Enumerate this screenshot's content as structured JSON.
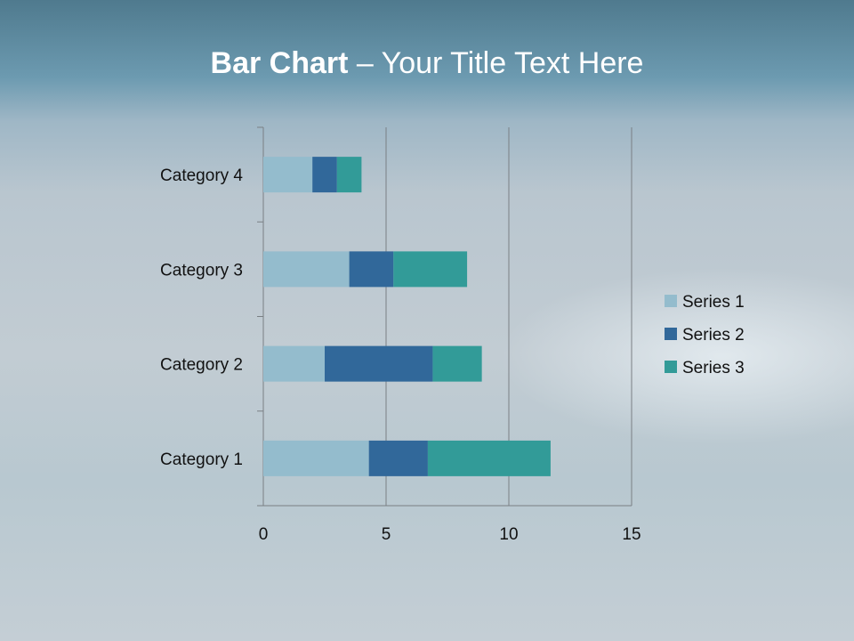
{
  "title": {
    "bold": "Bar Chart",
    "rest": " – Your Title Text Here"
  },
  "chart_data": {
    "type": "bar",
    "orientation": "horizontal",
    "stacked": true,
    "categories": [
      "Category 1",
      "Category 2",
      "Category 3",
      "Category 4"
    ],
    "series": [
      {
        "name": "Series 1",
        "values": [
          4.3,
          2.5,
          3.5,
          2.0
        ],
        "color": "#94bccd"
      },
      {
        "name": "Series 2",
        "values": [
          2.4,
          4.4,
          1.8,
          1.0
        ],
        "color": "#31689a"
      },
      {
        "name": "Series 3",
        "values": [
          5.0,
          2.0,
          3.0,
          1.0
        ],
        "color": "#329b98"
      }
    ],
    "xlim": [
      0,
      15
    ],
    "xticks": [
      0,
      5,
      10,
      15
    ],
    "grid": "vertical",
    "legend": "right"
  }
}
